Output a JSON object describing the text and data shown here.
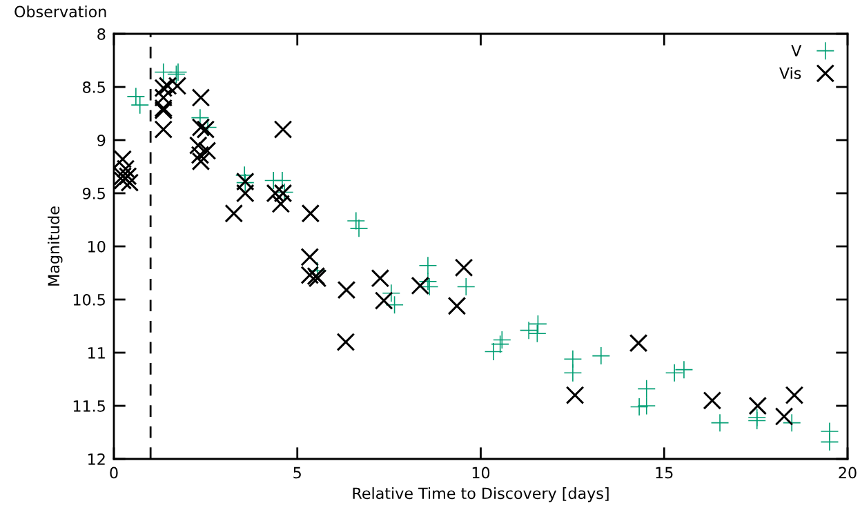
{
  "chart_data": {
    "type": "scatter",
    "xlabel": "Relative Time to Discovery [days]",
    "ylabel": "Magnitude",
    "annotations": [
      "Observation"
    ],
    "xlim": [
      0,
      20
    ],
    "xticks": [
      0,
      5,
      10,
      15,
      20
    ],
    "ylim": [
      12,
      8
    ],
    "yticks": [
      8,
      8.5,
      9,
      9.5,
      10,
      10.5,
      11,
      11.5,
      12
    ],
    "grid": false,
    "legend": "top right",
    "line_style": "none",
    "ref_lines": [
      {
        "axis": "x",
        "value": 1,
        "color": "#000000",
        "line_style": "dashed"
      }
    ],
    "series": [
      {
        "name": "V",
        "color": "#009e73",
        "marker": "cross",
        "x": [
          0.6,
          0.71,
          1.35,
          1.7,
          1.75,
          2.35,
          2.56,
          3.56,
          3.58,
          4.35,
          4.59,
          4.65,
          5.55,
          6.6,
          6.68,
          7.56,
          7.65,
          8.56,
          8.56,
          8.6,
          9.6,
          10.35,
          10.53,
          10.58,
          11.31,
          11.56,
          11.54,
          12.51,
          12.51,
          13.28,
          14.52,
          14.32,
          14.52,
          15.28,
          15.54,
          16.52,
          17.53,
          17.53,
          18.48,
          19.51,
          19.51
        ],
        "values": [
          8.59,
          8.67,
          8.36,
          8.38,
          8.36,
          8.79,
          8.88,
          9.33,
          9.4,
          9.38,
          9.38,
          9.49,
          10.23,
          9.76,
          9.83,
          10.44,
          10.55,
          10.18,
          10.33,
          10.38,
          10.38,
          10.99,
          10.92,
          10.88,
          10.79,
          10.73,
          10.82,
          11.06,
          11.19,
          11.03,
          11.34,
          11.51,
          11.5,
          11.19,
          11.16,
          11.66,
          11.61,
          11.64,
          11.66,
          11.74,
          11.84
        ]
      },
      {
        "name": "Vis",
        "color": "#000000",
        "marker": "x",
        "x": [
          0.24,
          0.32,
          0.38,
          0.24,
          0.43,
          0.24,
          1.35,
          1.47,
          1.35,
          1.35,
          1.35,
          1.35,
          1.73,
          2.37,
          2.37,
          2.5,
          2.3,
          2.54,
          2.35,
          2.37,
          4.61,
          3.27,
          3.58,
          3.58,
          4.4,
          4.55,
          4.61,
          5.36,
          5.34,
          5.34,
          5.51,
          5.55,
          6.34,
          6.32,
          7.26,
          7.36,
          8.35,
          9.54,
          9.35,
          14.3,
          12.57,
          16.31,
          17.55,
          18.27,
          18.55
        ],
        "values": [
          9.18,
          9.27,
          9.34,
          9.38,
          9.4,
          9.34,
          8.51,
          8.49,
          8.6,
          8.7,
          8.72,
          8.9,
          8.49,
          8.6,
          8.88,
          8.9,
          9.05,
          9.1,
          9.14,
          9.2,
          8.9,
          9.69,
          9.39,
          9.5,
          9.5,
          9.6,
          9.5,
          9.69,
          10.1,
          10.27,
          10.28,
          10.3,
          10.41,
          10.9,
          10.3,
          10.51,
          10.37,
          10.2,
          10.56,
          10.91,
          11.4,
          11.45,
          11.5,
          11.6,
          11.4
        ]
      }
    ]
  }
}
